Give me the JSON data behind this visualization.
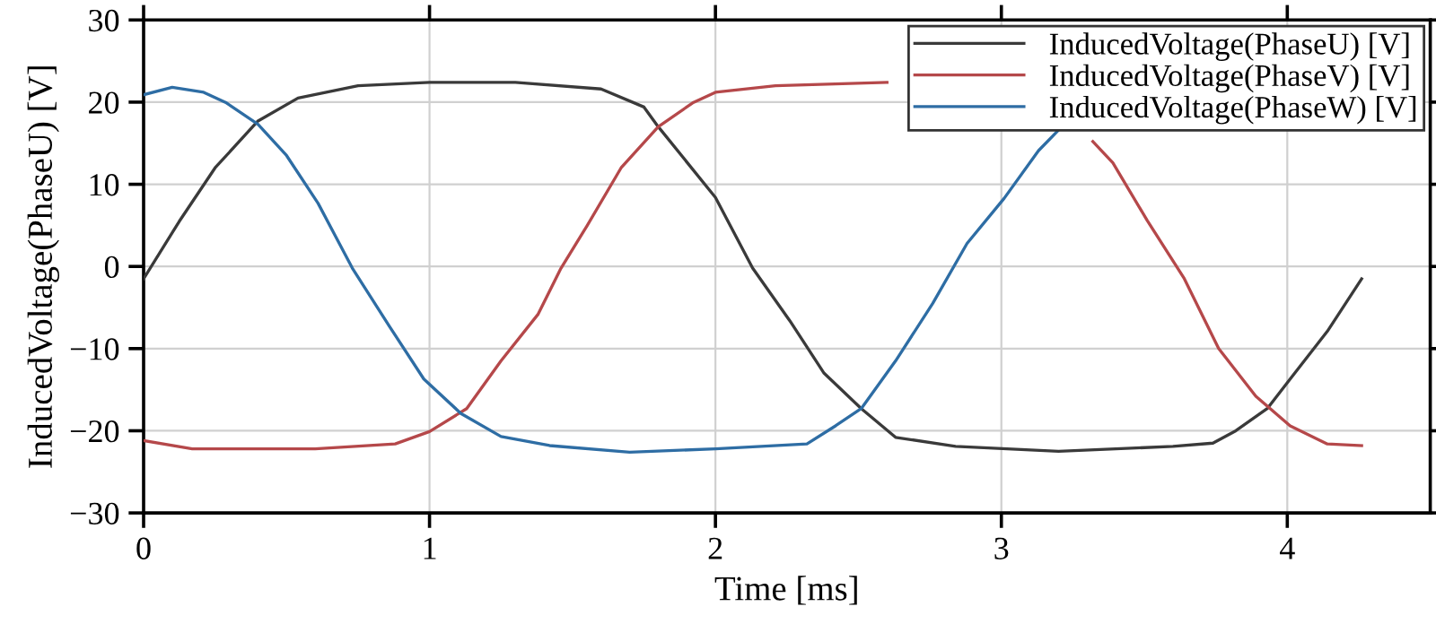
{
  "chart_data": {
    "type": "line",
    "xlabel": "Time [ms]",
    "ylabel": "InducedVoltage(PhaseU) [V]",
    "xlim": [
      0,
      4.5
    ],
    "ylim": [
      -30,
      30
    ],
    "xticks": [
      0,
      1,
      2,
      3,
      4
    ],
    "yticks": [
      -30,
      -20,
      -10,
      0,
      10,
      20,
      30
    ],
    "grid": true,
    "legend": "top right",
    "marker": "none",
    "line_style": "solid",
    "series": [
      {
        "name": "InducedVoltage(PhaseU) [V]",
        "color": "#3a3a3a",
        "x": [
          0,
          0.125,
          0.25,
          0.4,
          0.54,
          0.75,
          1,
          1.3,
          1.6,
          1.75,
          1.8,
          2,
          2.13,
          2.26,
          2.38,
          2.51,
          2.63,
          2.84,
          3.2,
          3.6,
          3.74,
          3.82,
          3.93,
          4.01,
          4.14,
          4.26
        ],
        "values": [
          -1.5,
          5.5,
          12,
          17.7,
          20.5,
          22,
          22.4,
          22.4,
          21.6,
          19.4,
          17,
          8.4,
          -0.2,
          -6.6,
          -13,
          -17.3,
          -20.8,
          -21.9,
          -22.5,
          -21.9,
          -21.5,
          -20,
          -17.3,
          -13.7,
          -7.9,
          -1.5
        ]
      },
      {
        "name": "InducedVoltage(PhaseV) [V]",
        "color": "#b5484a",
        "x": [
          0,
          0.17,
          0.6,
          0.88,
          1,
          1.13,
          1.25,
          1.38,
          1.46,
          1.55,
          1.67,
          1.8,
          1.92,
          2,
          2.21,
          2.6,
          3.2,
          3.32,
          3.39,
          3.51,
          3.64,
          3.76,
          3.89,
          4.01,
          4.14,
          4.26
        ],
        "values": [
          -21.2,
          -22.2,
          -22.2,
          -21.6,
          -20.1,
          -17.3,
          -11.5,
          -5.8,
          -0.2,
          4.9,
          12,
          17,
          19.9,
          21.2,
          22,
          22.4,
          null,
          15.2,
          12.6,
          5.6,
          -1.5,
          -10,
          -15.8,
          -19.4,
          -21.6,
          -21.8
        ]
      },
      {
        "name": "InducedVoltage(PhaseW) [V]",
        "color": "#2e6da4",
        "x": [
          0,
          0.1,
          0.21,
          0.29,
          0.4,
          0.5,
          0.61,
          0.73,
          0.86,
          0.98,
          1.11,
          1.25,
          1.42,
          1.7,
          2,
          2.32,
          2.42,
          2.51,
          2.63,
          2.76,
          2.88,
          3.01,
          3.13,
          3.2
        ],
        "values": [
          20.9,
          21.8,
          21.2,
          19.9,
          17.3,
          13.5,
          7.7,
          -0.2,
          -7.3,
          -13.7,
          -17.9,
          -20.7,
          -21.8,
          -22.6,
          -22.2,
          -21.6,
          -19.4,
          -17.3,
          -11.5,
          -4.5,
          2.8,
          8.3,
          14.1,
          16.6
        ]
      }
    ]
  }
}
